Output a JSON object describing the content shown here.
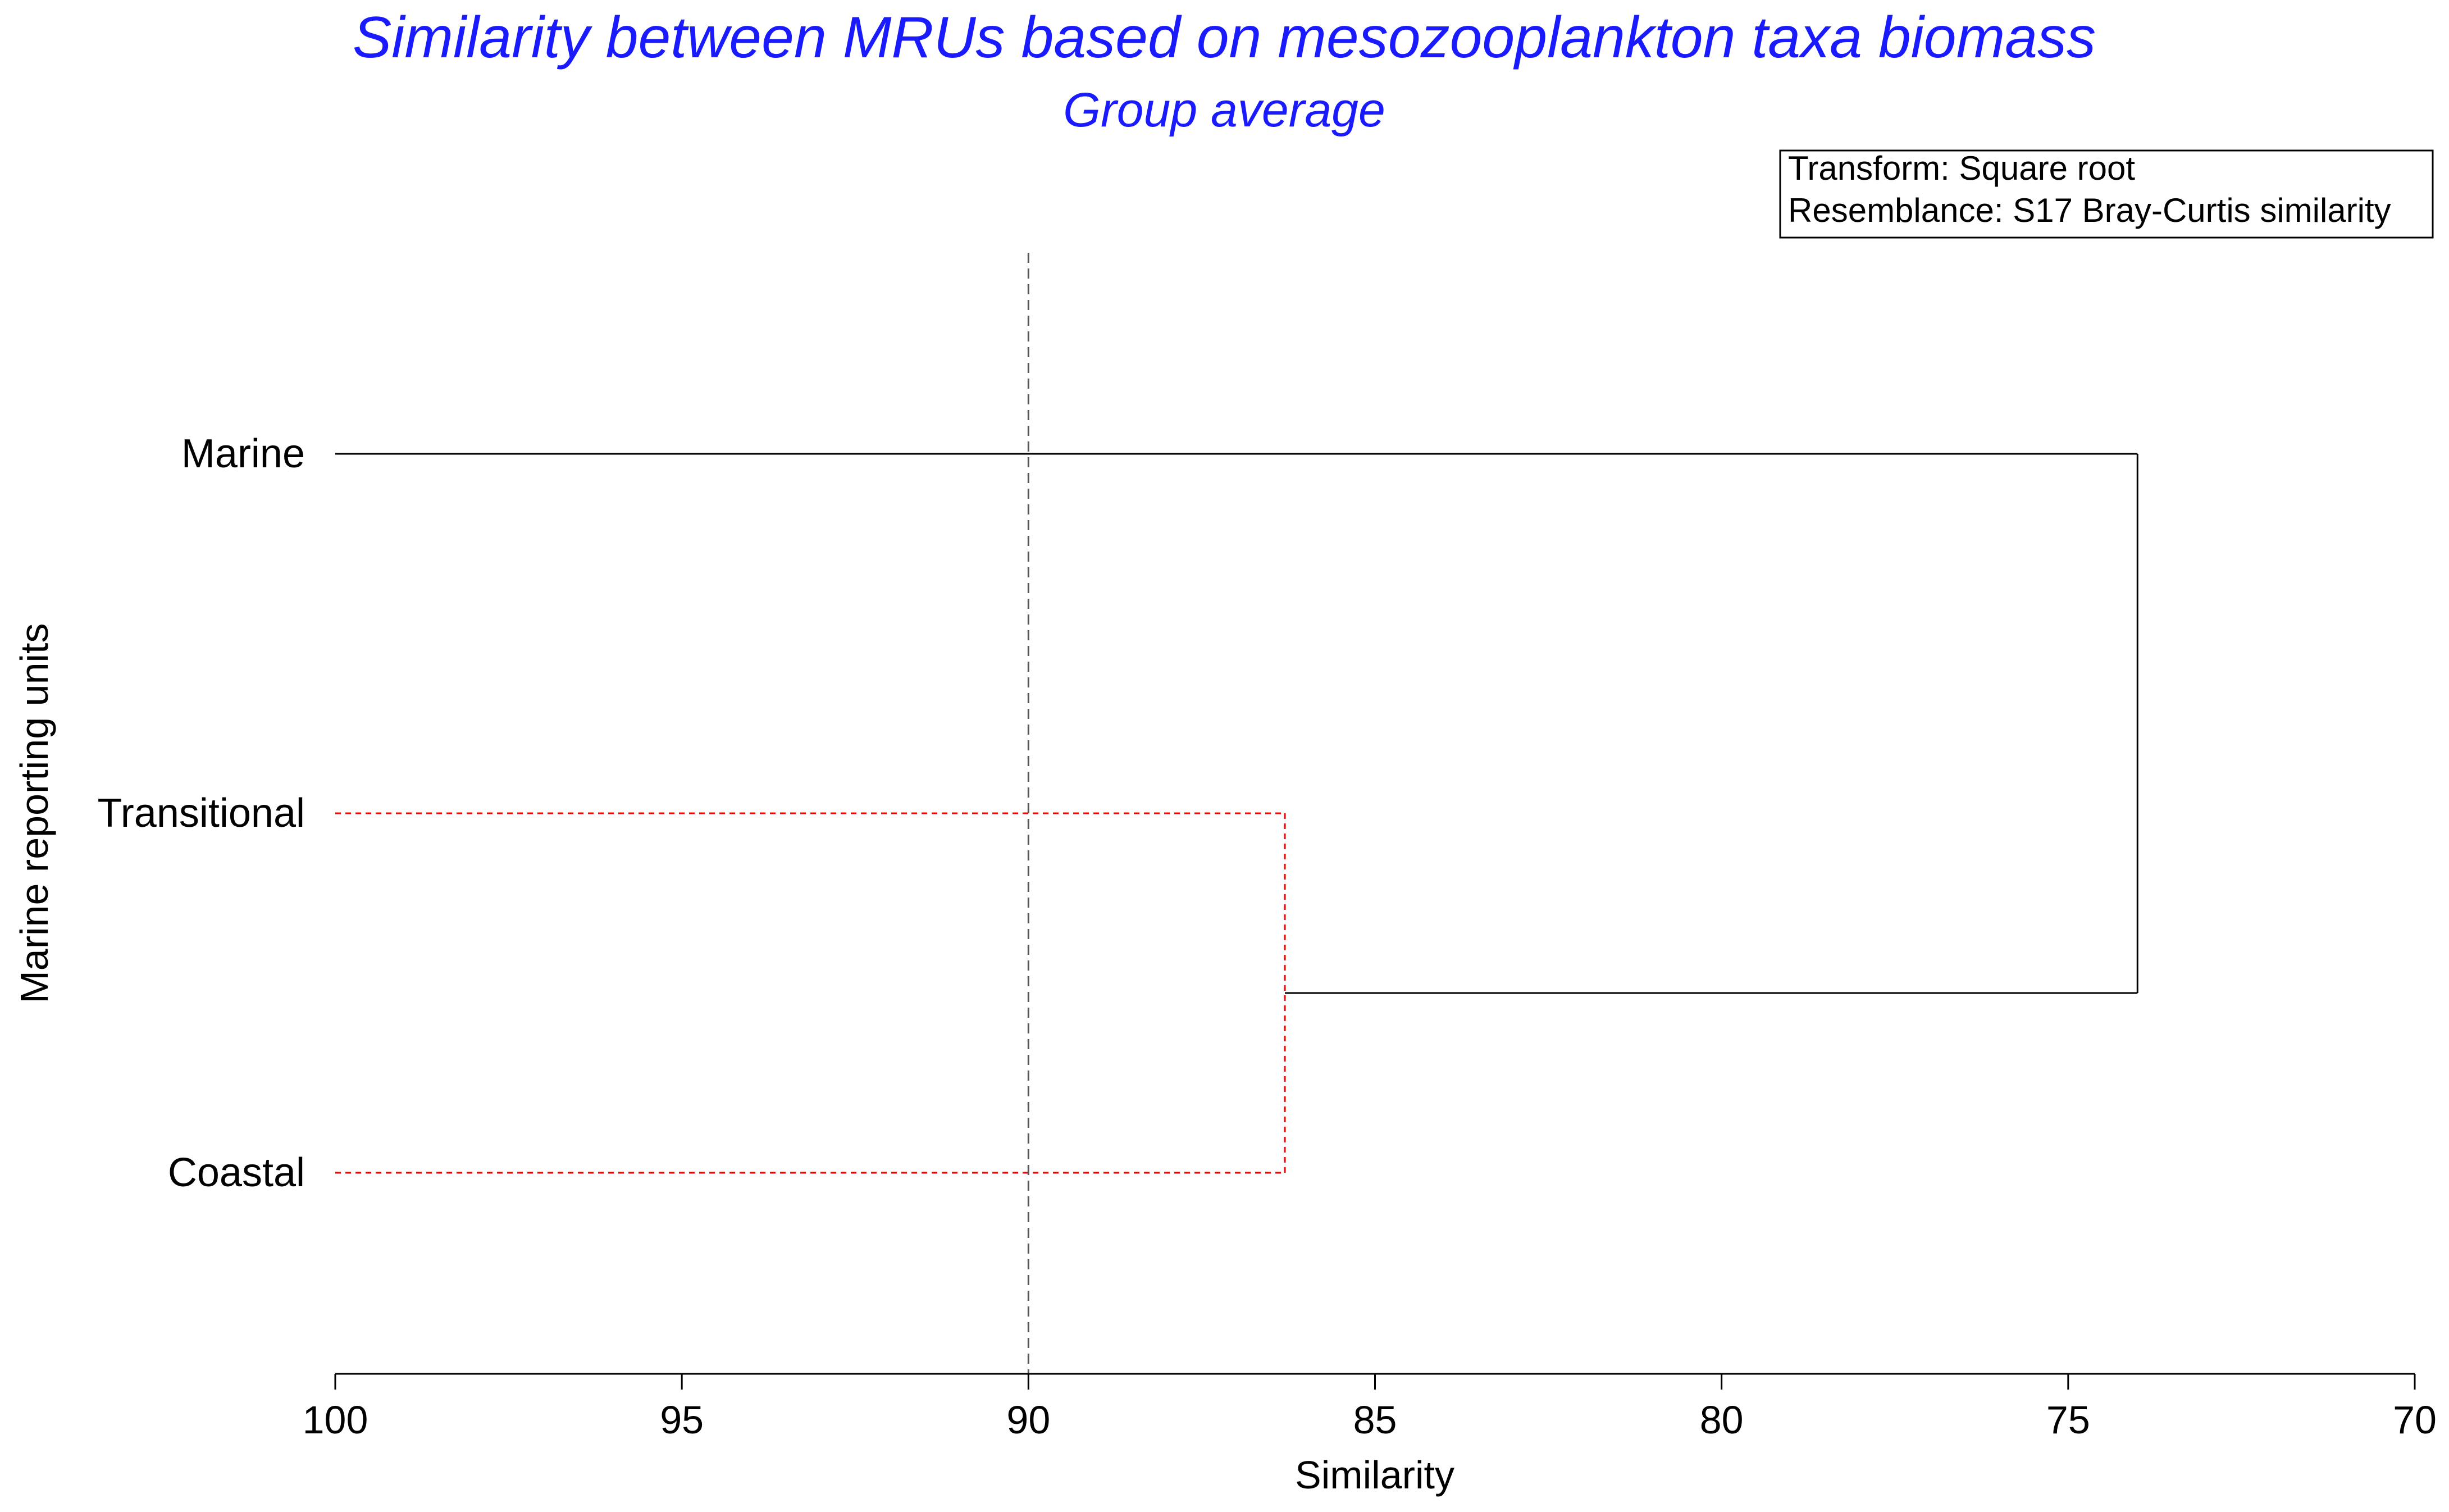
{
  "chart_data": {
    "type": "dendrogram",
    "title": "Similarity between MRUs based on mesozooplankton taxa biomass",
    "subtitle": "Group average",
    "xlabel": "Similarity",
    "ylabel": "Marine reporting units",
    "xlim": [
      100,
      70
    ],
    "x_reversed": true,
    "x_ticks": [
      100,
      95,
      90,
      85,
      80,
      75,
      70
    ],
    "leaves": [
      "Marine",
      "Transitional",
      "Coastal"
    ],
    "merges": [
      {
        "members": [
          "Transitional",
          "Coastal"
        ],
        "similarity": 86.3,
        "significant": false
      },
      {
        "members": [
          "Marine",
          "Transitional+Coastal"
        ],
        "similarity": 74.0,
        "significant": true
      }
    ],
    "reference_line": {
      "similarity": 90,
      "style": "dashed"
    },
    "info_box": [
      "Transform: Square root",
      "Resemblance: S17 Bray-Curtis similarity"
    ],
    "colors": {
      "title": "#1a1aff",
      "significant": "#000000",
      "non_significant": "#ff0000",
      "reference": "#555555"
    }
  }
}
